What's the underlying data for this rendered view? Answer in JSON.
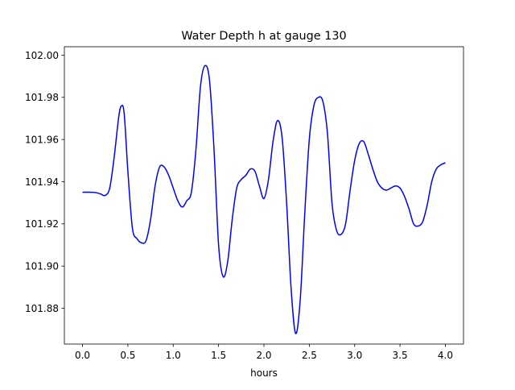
{
  "chart_data": {
    "type": "line",
    "title": "Water Depth h at gauge 130",
    "xlabel": "hours",
    "ylabel": "",
    "xlim": [
      -0.2,
      4.2
    ],
    "ylim": [
      101.863,
      102.004
    ],
    "x_ticks": [
      0.0,
      0.5,
      1.0,
      1.5,
      2.0,
      2.5,
      3.0,
      3.5,
      4.0
    ],
    "x_tick_labels": [
      "0.0",
      "0.5",
      "1.0",
      "1.5",
      "2.0",
      "2.5",
      "3.0",
      "3.5",
      "4.0"
    ],
    "y_ticks": [
      101.88,
      101.9,
      101.92,
      101.94,
      101.96,
      101.98,
      102.0
    ],
    "y_tick_labels": [
      "101.88",
      "101.90",
      "101.92",
      "101.94",
      "101.96",
      "101.98",
      "102.00"
    ],
    "grid": false,
    "legend": "none",
    "series": [
      {
        "color": "#0000ff",
        "x": [
          0.0,
          0.1,
          0.15,
          0.2,
          0.25,
          0.3,
          0.35,
          0.4,
          0.43,
          0.46,
          0.5,
          0.55,
          0.6,
          0.65,
          0.7,
          0.75,
          0.8,
          0.85,
          0.9,
          0.95,
          1.0,
          1.05,
          1.1,
          1.15,
          1.2,
          1.25,
          1.3,
          1.35,
          1.4,
          1.45,
          1.5,
          1.55,
          1.6,
          1.65,
          1.7,
          1.75,
          1.8,
          1.85,
          1.9,
          1.95,
          2.0,
          2.05,
          2.1,
          2.15,
          2.2,
          2.25,
          2.3,
          2.35,
          2.4,
          2.45,
          2.5,
          2.55,
          2.6,
          2.65,
          2.7,
          2.75,
          2.8,
          2.85,
          2.9,
          2.95,
          3.0,
          3.05,
          3.1,
          3.15,
          3.2,
          3.25,
          3.3,
          3.35,
          3.4,
          3.45,
          3.5,
          3.55,
          3.6,
          3.65,
          3.7,
          3.75,
          3.8,
          3.85,
          3.9,
          3.95,
          4.0
        ],
        "y": [
          101.935,
          101.935,
          101.9348,
          101.9342,
          101.9335,
          101.937,
          101.952,
          101.971,
          101.976,
          101.972,
          101.945,
          101.918,
          101.913,
          101.911,
          101.912,
          101.922,
          101.938,
          101.947,
          101.947,
          101.943,
          101.937,
          101.931,
          101.928,
          101.931,
          101.935,
          101.955,
          101.985,
          101.995,
          101.988,
          101.955,
          101.91,
          101.895,
          101.902,
          101.922,
          101.937,
          101.941,
          101.943,
          101.946,
          101.945,
          101.938,
          101.932,
          101.941,
          101.959,
          101.969,
          101.961,
          101.93,
          101.889,
          101.868,
          101.884,
          101.925,
          101.96,
          101.976,
          101.98,
          101.978,
          101.963,
          101.93,
          101.917,
          101.915,
          101.92,
          101.936,
          101.95,
          101.958,
          101.959,
          101.953,
          101.946,
          101.94,
          101.937,
          101.936,
          101.937,
          101.938,
          101.937,
          101.933,
          101.927,
          101.92,
          101.919,
          101.921,
          101.929,
          101.94,
          101.946,
          101.948,
          101.949
        ]
      }
    ]
  }
}
